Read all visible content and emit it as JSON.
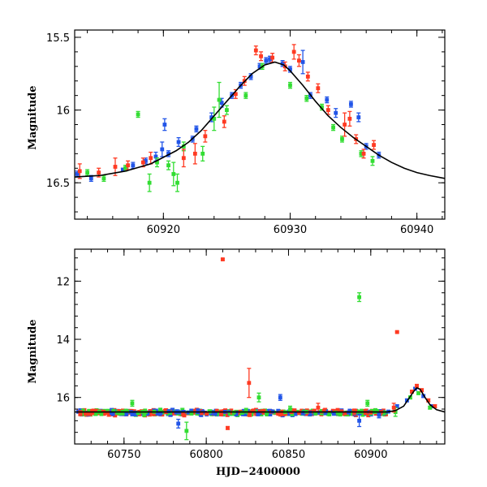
{
  "chart_data": [
    {
      "type": "scatter",
      "title": "",
      "xlabel": "",
      "ylabel": "Magnitude",
      "xlim": [
        60913,
        60942.2
      ],
      "ylim": [
        16.75,
        15.45
      ],
      "y_inverted": true,
      "xticks": [
        60920,
        60930,
        60940
      ],
      "yticks": [
        15.5,
        16,
        16.5
      ],
      "xtick_labels": [
        "60920",
        "60930",
        "60940"
      ],
      "ytick_labels": [
        "15.5",
        "16",
        "16.5"
      ],
      "model_curve": {
        "color": "#000000",
        "points": [
          [
            60913,
            16.46
          ],
          [
            60915,
            16.45
          ],
          [
            60917,
            16.42
          ],
          [
            60919,
            16.37
          ],
          [
            60921,
            16.28
          ],
          [
            60922,
            16.22
          ],
          [
            60923,
            16.14
          ],
          [
            60924,
            16.04
          ],
          [
            60925,
            15.94
          ],
          [
            60926,
            15.84
          ],
          [
            60927,
            15.75
          ],
          [
            60928,
            15.69
          ],
          [
            60928.8,
            15.67
          ],
          [
            60929.5,
            15.69
          ],
          [
            60930,
            15.73
          ],
          [
            60931,
            15.83
          ],
          [
            60932,
            15.94
          ],
          [
            60933,
            16.04
          ],
          [
            60934,
            16.12
          ],
          [
            60935,
            16.19
          ],
          [
            60936,
            16.25
          ],
          [
            60937,
            16.31
          ],
          [
            60938,
            16.36
          ],
          [
            60939,
            16.4
          ],
          [
            60940,
            16.43
          ],
          [
            60941,
            16.45
          ],
          [
            60942.2,
            16.47
          ]
        ]
      },
      "series": [
        {
          "color": "#2255e8",
          "points": [
            [
              60913.2,
              16.44,
              0.02
            ],
            [
              60914.3,
              16.47,
              0.02
            ],
            [
              60916.8,
              16.41,
              0.01
            ],
            [
              60917.6,
              16.38,
              0.02
            ],
            [
              60918.6,
              16.35,
              0.02
            ],
            [
              60919.4,
              16.32,
              0.03
            ],
            [
              60919.9,
              16.27,
              0.05
            ],
            [
              60920.1,
              16.1,
              0.04
            ],
            [
              60920.4,
              16.3,
              0.02
            ],
            [
              60921.2,
              16.22,
              0.03
            ],
            [
              60922.3,
              16.2,
              0.02
            ],
            [
              60922.6,
              16.13,
              0.02
            ],
            [
              60923.8,
              16.05,
              0.03
            ],
            [
              60924.6,
              15.95,
              0.03
            ],
            [
              60925.4,
              15.9,
              0.02
            ],
            [
              60926.1,
              15.83,
              0.02
            ],
            [
              60926.9,
              15.77,
              0.02
            ],
            [
              60927.6,
              15.7,
              0.02
            ],
            [
              60928.1,
              15.66,
              0.02
            ],
            [
              60928.4,
              15.65,
              0.02
            ],
            [
              60929.4,
              15.68,
              0.02
            ],
            [
              60930.0,
              15.72,
              0.02
            ],
            [
              60931.0,
              15.67,
              0.08
            ],
            [
              60931.6,
              15.9,
              0.02
            ],
            [
              60932.9,
              15.93,
              0.02
            ],
            [
              60933.6,
              16.02,
              0.03
            ],
            [
              60934.8,
              15.96,
              0.02
            ],
            [
              60935.4,
              16.05,
              0.03
            ],
            [
              60936.0,
              16.25,
              0.02
            ],
            [
              60937.0,
              16.31,
              0.02
            ]
          ]
        },
        {
          "color": "#33dd33",
          "points": [
            [
              60914.0,
              16.43,
              0.02
            ],
            [
              60915.3,
              16.47,
              0.02
            ],
            [
              60917.0,
              16.4,
              0.02
            ],
            [
              60918.0,
              16.03,
              0.02
            ],
            [
              60918.9,
              16.5,
              0.06
            ],
            [
              60919.5,
              16.36,
              0.03
            ],
            [
              60920.4,
              16.38,
              0.03
            ],
            [
              60920.8,
              16.44,
              0.08
            ],
            [
              60921.1,
              16.5,
              0.06
            ],
            [
              60921.6,
              16.25,
              0.03
            ],
            [
              60923.1,
              16.3,
              0.05
            ],
            [
              60924.0,
              16.06,
              0.08
            ],
            [
              60924.4,
              15.93,
              0.12
            ],
            [
              60925.0,
              16.0,
              0.03
            ],
            [
              60926.5,
              15.9,
              0.02
            ],
            [
              60927.8,
              15.7,
              0.02
            ],
            [
              60930.0,
              15.83,
              0.02
            ],
            [
              60931.3,
              15.92,
              0.02
            ],
            [
              60932.5,
              15.98,
              0.02
            ],
            [
              60933.4,
              16.12,
              0.02
            ],
            [
              60934.1,
              16.2,
              0.02
            ],
            [
              60935.6,
              16.3,
              0.02
            ],
            [
              60936.5,
              16.35,
              0.03
            ]
          ]
        },
        {
          "color": "#ff3a22",
          "points": [
            [
              60913.4,
              16.42,
              0.05
            ],
            [
              60914.9,
              16.43,
              0.03
            ],
            [
              60916.2,
              16.39,
              0.06
            ],
            [
              60917.2,
              16.38,
              0.03
            ],
            [
              60918.4,
              16.36,
              0.03
            ],
            [
              60919.0,
              16.33,
              0.04
            ],
            [
              60921.6,
              16.33,
              0.06
            ],
            [
              60922.5,
              16.3,
              0.07
            ],
            [
              60923.3,
              16.18,
              0.04
            ],
            [
              60924.8,
              16.08,
              0.04
            ],
            [
              60925.7,
              15.89,
              0.03
            ],
            [
              60926.4,
              15.8,
              0.03
            ],
            [
              60927.3,
              15.59,
              0.03
            ],
            [
              60927.7,
              15.63,
              0.03
            ],
            [
              60928.6,
              15.64,
              0.03
            ],
            [
              60929.6,
              15.7,
              0.03
            ],
            [
              60930.3,
              15.6,
              0.05
            ],
            [
              60930.7,
              15.66,
              0.04
            ],
            [
              60931.4,
              15.77,
              0.03
            ],
            [
              60932.2,
              15.85,
              0.03
            ],
            [
              60933.0,
              16.0,
              0.03
            ],
            [
              60934.3,
              16.1,
              0.08
            ],
            [
              60934.7,
              16.06,
              0.05
            ],
            [
              60935.2,
              16.2,
              0.03
            ],
            [
              60935.8,
              16.3,
              0.03
            ],
            [
              60936.6,
              16.24,
              0.03
            ]
          ]
        }
      ]
    },
    {
      "type": "scatter",
      "title": "",
      "xlabel": "HJD−2400000",
      "ylabel": "Magnitude",
      "xlim": [
        60720,
        60945
      ],
      "ylim": [
        17.6,
        10.9
      ],
      "y_inverted": true,
      "xticks": [
        60750,
        60800,
        60850,
        60900
      ],
      "yticks": [
        12,
        14,
        16
      ],
      "xtick_labels": [
        "60750",
        "60800",
        "60850",
        "60900"
      ],
      "ytick_labels": [
        "12",
        "14",
        "16"
      ],
      "model_curve": {
        "color": "#000000",
        "points": [
          [
            60720,
            16.5
          ],
          [
            60910,
            16.5
          ],
          [
            60915,
            16.45
          ],
          [
            60920,
            16.3
          ],
          [
            60923,
            16.05
          ],
          [
            60926,
            15.8
          ],
          [
            60928,
            15.67
          ],
          [
            60930,
            15.72
          ],
          [
            60933,
            16.0
          ],
          [
            60936,
            16.25
          ],
          [
            60940,
            16.42
          ],
          [
            60945,
            16.5
          ]
        ]
      },
      "series": [
        {
          "color": "#2255e8",
          "points": [
            [
              60783,
              16.9,
              0.15
            ],
            [
              60845,
              16.0,
              0.1
            ],
            [
              60893,
              16.8,
              0.2
            ],
            [
              60905,
              16.6,
              0.1
            ],
            [
              60916,
              16.3,
              0.05
            ],
            [
              60922,
              16.1,
              0.05
            ],
            [
              60927,
              15.7,
              0.05
            ],
            [
              60932,
              15.95,
              0.05
            ],
            [
              60937,
              16.3,
              0.05
            ]
          ]
        },
        {
          "color": "#33dd33",
          "points": [
            [
              60735,
              16.5,
              0.05
            ],
            [
              60755,
              16.2,
              0.1
            ],
            [
              60788,
              17.15,
              0.3
            ],
            [
              60832,
              16.0,
              0.15
            ],
            [
              60851,
              16.4,
              0.1
            ],
            [
              60893,
              12.55,
              0.15
            ],
            [
              60898,
              16.2,
              0.1
            ],
            [
              60915,
              16.5,
              0.15
            ],
            [
              60924,
              16.0,
              0.05
            ],
            [
              60929,
              15.85,
              0.05
            ],
            [
              60936,
              16.35,
              0.05
            ]
          ]
        },
        {
          "color": "#ff3a22",
          "points": [
            [
              60810,
              11.25,
              0.03
            ],
            [
              60813,
              17.05,
              0.05
            ],
            [
              60826,
              15.5,
              0.5
            ],
            [
              60868,
              16.35,
              0.15
            ],
            [
              60890,
              16.5,
              0.1
            ],
            [
              60914,
              16.35,
              0.15
            ],
            [
              60916,
              13.75,
              0.03
            ],
            [
              60925,
              15.8,
              0.05
            ],
            [
              60928,
              15.6,
              0.05
            ],
            [
              60931,
              15.75,
              0.05
            ],
            [
              60935,
              16.1,
              0.05
            ],
            [
              60939,
              16.3,
              0.05
            ]
          ]
        }
      ],
      "dense_baseline": {
        "x_range": [
          60722,
          60912
        ],
        "mean_mag": 16.52,
        "spread": 0.07
      }
    }
  ]
}
